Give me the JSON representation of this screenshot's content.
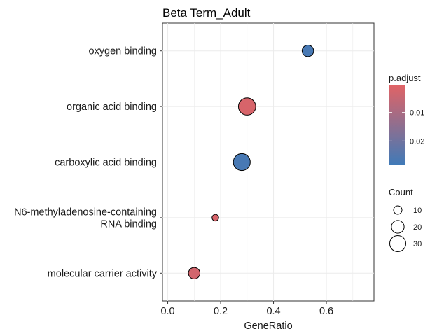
{
  "chart_data": {
    "type": "scatter",
    "title": "Beta Term_Adult",
    "xlabel": "GeneRatio",
    "ylabel": "",
    "xlim": [
      -0.02,
      0.78
    ],
    "xticks": [
      0.0,
      0.2,
      0.4,
      0.6
    ],
    "xtick_labels": [
      "0.0",
      "0.2",
      "0.4",
      "0.6"
    ],
    "grid": true,
    "legend_position": "right",
    "categories": [
      "oxygen binding",
      "organic acid binding",
      "carboxylic acid binding",
      "N6-methyladenosine-containing RNA binding",
      "molecular carrier activity"
    ],
    "category_lines": [
      [
        "oxygen binding"
      ],
      [
        "organic acid binding"
      ],
      [
        "carboxylic acid binding"
      ],
      [
        "N6-methyladenosine-containing",
        "RNA binding"
      ],
      [
        "molecular carrier activity"
      ]
    ],
    "points": [
      {
        "category": "oxygen binding",
        "x": 0.53,
        "count": 12,
        "p_adjust": 0.027
      },
      {
        "category": "organic acid binding",
        "x": 0.3,
        "count": 27,
        "p_adjust": 0.002
      },
      {
        "category": "carboxylic acid binding",
        "x": 0.28,
        "count": 26,
        "p_adjust": 0.027
      },
      {
        "category": "N6-methyladenosine-containing RNA binding",
        "x": 0.18,
        "count": 4,
        "p_adjust": 0.002
      },
      {
        "category": "molecular carrier activity",
        "x": 0.1,
        "count": 12,
        "p_adjust": 0.003
      }
    ],
    "color_legend": {
      "title": "p.adjust",
      "range": [
        0.0005,
        0.0285
      ],
      "ticks": [
        0.01,
        0.02
      ],
      "tick_labels": [
        "0.01",
        "0.02"
      ],
      "low_color": "#e06366",
      "high_color": "#3f7ab8"
    },
    "size_legend": {
      "title": "Count",
      "values": [
        10,
        20,
        30
      ],
      "labels": [
        "10",
        "20",
        "30"
      ],
      "max_count": 30
    }
  }
}
